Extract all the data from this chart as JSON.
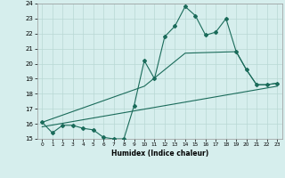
{
  "title": "",
  "xlabel": "Humidex (Indice chaleur)",
  "background_color": "#d6eeed",
  "grid_color": "#b8d8d4",
  "line_color": "#1a6b5a",
  "xlim": [
    -0.5,
    23.5
  ],
  "ylim": [
    15,
    24
  ],
  "xticks": [
    0,
    1,
    2,
    3,
    4,
    5,
    6,
    7,
    8,
    9,
    10,
    11,
    12,
    13,
    14,
    15,
    16,
    17,
    18,
    19,
    20,
    21,
    22,
    23
  ],
  "yticks": [
    15,
    16,
    17,
    18,
    19,
    20,
    21,
    22,
    23,
    24
  ],
  "line1_x": [
    0,
    1,
    2,
    3,
    4,
    5,
    6,
    7,
    8,
    9,
    10,
    11,
    12,
    13,
    14,
    15,
    16,
    17,
    18,
    19,
    20,
    21,
    22,
    23
  ],
  "line1_y": [
    16.1,
    15.4,
    15.9,
    15.9,
    15.7,
    15.6,
    15.1,
    15.0,
    15.0,
    17.2,
    20.2,
    19.0,
    21.8,
    22.5,
    23.8,
    23.2,
    21.9,
    22.1,
    23.0,
    20.8,
    19.6,
    18.6,
    18.6,
    18.7
  ],
  "line2_x": [
    0,
    10,
    14,
    19,
    20,
    21,
    22,
    23
  ],
  "line2_y": [
    16.1,
    18.5,
    20.7,
    20.8,
    19.6,
    18.6,
    18.6,
    18.7
  ],
  "line3_x": [
    0,
    23
  ],
  "line3_y": [
    15.8,
    18.5
  ]
}
